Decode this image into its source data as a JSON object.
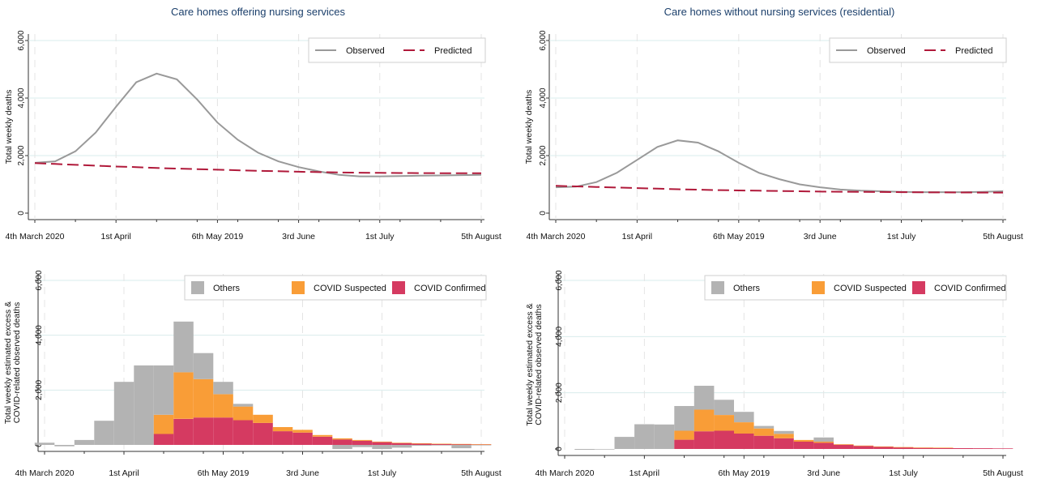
{
  "x_ticks": [
    "4th March 2020",
    "1st April",
    "6th May 2019",
    "3rd June",
    "1st July",
    "5th August"
  ],
  "chart_data": [
    {
      "type": "line",
      "title": "Care homes offering nursing services",
      "ylabel": "Total weekly deaths",
      "ylim": [
        0,
        6000
      ],
      "yticks": [
        "0",
        "2,000",
        "4,000",
        "6,000"
      ],
      "legend_position": "top-right",
      "weeks": 23,
      "series": [
        {
          "name": "Observed",
          "color": "#999999",
          "dash": false,
          "values": [
            1750,
            1800,
            2150,
            2800,
            3700,
            4550,
            4850,
            4650,
            3950,
            3150,
            2550,
            2100,
            1800,
            1600,
            1450,
            1330,
            1280,
            1280,
            1290,
            1300,
            1310,
            1320,
            1330
          ]
        },
        {
          "name": "Predicted",
          "color": "#b0193a",
          "dash": true,
          "values": [
            1740,
            1710,
            1680,
            1650,
            1620,
            1600,
            1570,
            1550,
            1530,
            1510,
            1490,
            1470,
            1455,
            1440,
            1425,
            1415,
            1405,
            1400,
            1395,
            1392,
            1390,
            1390,
            1390
          ]
        }
      ]
    },
    {
      "type": "line",
      "title": "Care homes without nursing services (residential)",
      "ylabel": "Total weekly deaths",
      "ylim": [
        0,
        6000
      ],
      "yticks": [
        "0",
        "2,000",
        "4,000",
        "6,000"
      ],
      "legend_position": "top-right",
      "weeks": 23,
      "series": [
        {
          "name": "Observed",
          "color": "#999999",
          "dash": false,
          "values": [
            900,
            920,
            1080,
            1400,
            1850,
            2300,
            2530,
            2450,
            2150,
            1750,
            1400,
            1180,
            1000,
            900,
            820,
            780,
            760,
            740,
            730,
            730,
            730,
            740,
            760
          ]
        },
        {
          "name": "Predicted",
          "color": "#b0193a",
          "dash": true,
          "values": [
            950,
            930,
            910,
            890,
            870,
            850,
            830,
            815,
            800,
            790,
            780,
            770,
            760,
            750,
            745,
            740,
            735,
            730,
            725,
            720,
            718,
            716,
            715
          ]
        }
      ]
    },
    {
      "type": "bar",
      "stacked": true,
      "ylabel": "Total weekly estimated excess & COVID-related observed deaths",
      "ylim": [
        0,
        6000
      ],
      "yticks": [
        "0",
        "2,000",
        "4,000",
        "6,000"
      ],
      "legend_position": "top-right",
      "weeks": 23,
      "series": [
        {
          "name": "COVID Confirmed",
          "color": "#d53a61",
          "values": [
            0,
            0,
            0,
            0,
            0,
            0,
            400,
            950,
            1000,
            1000,
            900,
            800,
            500,
            450,
            300,
            200,
            150,
            100,
            70,
            50,
            40,
            30,
            20
          ]
        },
        {
          "name": "COVID Suspected",
          "color": "#f99d37",
          "values": [
            0,
            0,
            0,
            0,
            0,
            0,
            700,
            1700,
            1400,
            850,
            500,
            300,
            150,
            100,
            60,
            40,
            30,
            20,
            10,
            10,
            5,
            5,
            5
          ]
        },
        {
          "name": "Others",
          "color": "#b3b3b3",
          "values": [
            80,
            -50,
            180,
            880,
            2300,
            2900,
            1800,
            1850,
            950,
            450,
            100,
            0,
            0,
            0,
            0,
            -150,
            -80,
            -150,
            -100,
            -30,
            -20,
            -120,
            -10
          ]
        }
      ]
    },
    {
      "type": "bar",
      "stacked": true,
      "ylabel": "Total weekly estimated excess & COVID-related observed deaths",
      "ylim": [
        0,
        6000
      ],
      "yticks": [
        "0",
        "2,000",
        "4,000",
        "6,000"
      ],
      "legend_position": "top-right",
      "weeks": 23,
      "series": [
        {
          "name": "COVID Confirmed",
          "color": "#d53a61",
          "values": [
            0,
            0,
            0,
            0,
            0,
            0,
            330,
            630,
            650,
            550,
            470,
            380,
            260,
            220,
            150,
            110,
            80,
            60,
            45,
            40,
            30,
            25,
            20
          ]
        },
        {
          "name": "COVID Suspected",
          "color": "#f99d37",
          "values": [
            0,
            0,
            0,
            0,
            0,
            0,
            320,
            770,
            560,
            400,
            260,
            160,
            60,
            40,
            20,
            10,
            10,
            5,
            5,
            5,
            0,
            0,
            0
          ]
        },
        {
          "name": "Others",
          "color": "#b3b3b3",
          "values": [
            0,
            -30,
            -20,
            430,
            880,
            870,
            880,
            850,
            540,
            370,
            90,
            100,
            0,
            150,
            0,
            0,
            0,
            0,
            0,
            0,
            0,
            0,
            0
          ]
        }
      ]
    }
  ]
}
